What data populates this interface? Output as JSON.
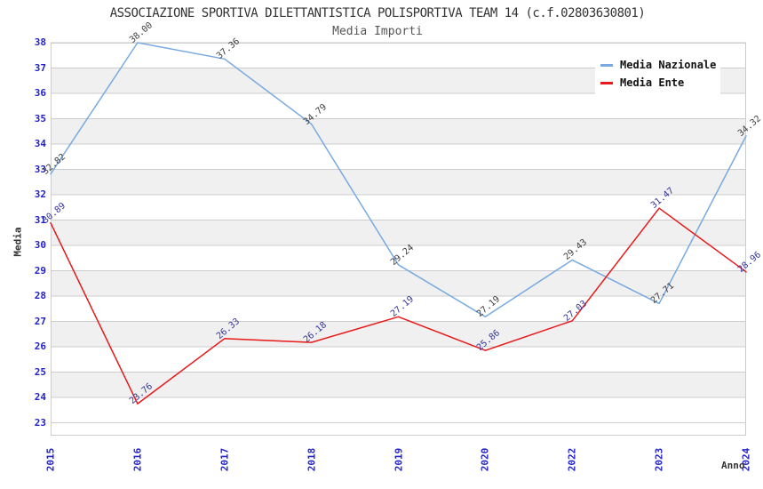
{
  "title": "ASSOCIAZIONE SPORTIVA DILETTANTISTICA POLISPORTIVA TEAM 14 (c.f.02803630801)",
  "subtitle": "Media Importi",
  "legend": {
    "items": [
      {
        "label": "Media Nazionale",
        "color": "#78aae1"
      },
      {
        "label": "Media Ente",
        "color": "#e81919"
      }
    ]
  },
  "axes": {
    "y_title": "Media",
    "x_title": "Anno",
    "y_ticks": [
      23,
      24,
      25,
      26,
      27,
      28,
      29,
      30,
      31,
      32,
      33,
      34,
      35,
      36,
      37,
      38
    ],
    "tick_color": "#2222cc",
    "grid_color": "#cccccc",
    "band_color": "#f0f0f0"
  },
  "chart_data": {
    "type": "line",
    "title": "ASSOCIAZIONE SPORTIVA DILETTANTISTICA POLISPORTIVA TEAM 14 (c.f.02803630801)",
    "subtitle": "Media Importi",
    "categories": [
      "2015",
      "2016",
      "2017",
      "2018",
      "2019",
      "2020",
      "2022",
      "2023",
      "2024"
    ],
    "series": [
      {
        "name": "Media Nazionale",
        "color": "#78aae1",
        "label_color": "#3d3d3d",
        "values": [
          32.82,
          38.0,
          37.36,
          34.79,
          29.24,
          27.19,
          29.43,
          27.71,
          34.32
        ]
      },
      {
        "name": "Media Ente",
        "color": "#e81919",
        "label_color": "#333399",
        "values": [
          30.89,
          23.76,
          26.33,
          26.18,
          27.19,
          25.86,
          27.03,
          31.47,
          28.96
        ]
      }
    ],
    "xlabel": "Anno",
    "ylabel": "Media",
    "ylim": [
      22.5,
      38
    ],
    "grid": true,
    "alternating_bands": true,
    "legend_position": "top-right",
    "value_label_decimals": 2
  }
}
